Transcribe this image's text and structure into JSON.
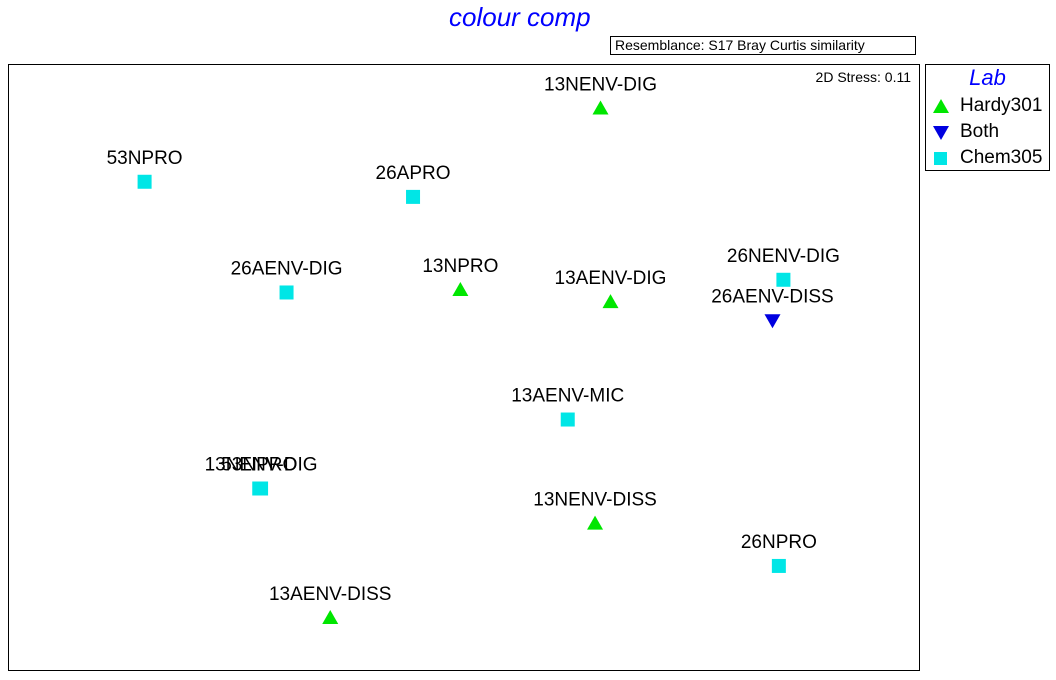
{
  "title": "colour comp",
  "resemblance": "Resemblance: S17 Bray Curtis similarity",
  "stress": "2D Stress: 0.11",
  "legend": {
    "title": "Lab",
    "placement": "right",
    "items": [
      {
        "label": "Hardy301",
        "marker": "triangle-up",
        "color": "#00e600"
      },
      {
        "label": "Both",
        "marker": "triangle-down",
        "color": "#0000e0"
      },
      {
        "label": "Chem305",
        "marker": "square",
        "color": "#00e6e6"
      }
    ]
  },
  "chart_data": {
    "type": "scatter",
    "title": "colour comp",
    "subtitle": "Resemblance: S17 Bray Curtis similarity",
    "annotation": "2D Stress: 0.11",
    "xlabel": "",
    "ylabel": "",
    "grid": false,
    "legend_placement": "right",
    "xlim": [
      0,
      100
    ],
    "ylim": [
      0,
      100
    ],
    "series": [
      {
        "name": "Hardy301",
        "marker": "triangle-up",
        "color": "#00e600",
        "points": [
          {
            "label": "13NENV-DIG",
            "x": 65.0,
            "y": 92.8
          },
          {
            "label": "13NPRO",
            "x": 49.6,
            "y": 62.8
          },
          {
            "label": "13AENV-DIG",
            "x": 66.1,
            "y": 60.8
          },
          {
            "label": "13NENV-DISS",
            "x": 64.4,
            "y": 24.2
          },
          {
            "label": "13AENV-DISS",
            "x": 35.3,
            "y": 8.6
          }
        ]
      },
      {
        "name": "Both",
        "marker": "triangle-down",
        "color": "#0000e0",
        "points": [
          {
            "label": "26AENV-DISS",
            "x": 83.9,
            "y": 57.8
          }
        ]
      },
      {
        "name": "Chem305",
        "marker": "square",
        "color": "#00e6e6",
        "points": [
          {
            "label": "53NPRO",
            "x": 14.9,
            "y": 80.7
          },
          {
            "label": "26APRO",
            "x": 44.4,
            "y": 78.2
          },
          {
            "label": "26AENV-DIG",
            "x": 30.5,
            "y": 62.4
          },
          {
            "label": "26NENV-DIG",
            "x": 85.1,
            "y": 64.5
          },
          {
            "label": "13AENV-MIC",
            "x": 61.4,
            "y": 41.4
          },
          {
            "label": "53NPRO",
            "x": 27.5,
            "y": 30.0
          },
          {
            "label": "13NENV-DIG",
            "x": 27.7,
            "y": 30.0
          },
          {
            "label": "26NPRO",
            "x": 84.6,
            "y": 17.2
          }
        ]
      }
    ]
  }
}
